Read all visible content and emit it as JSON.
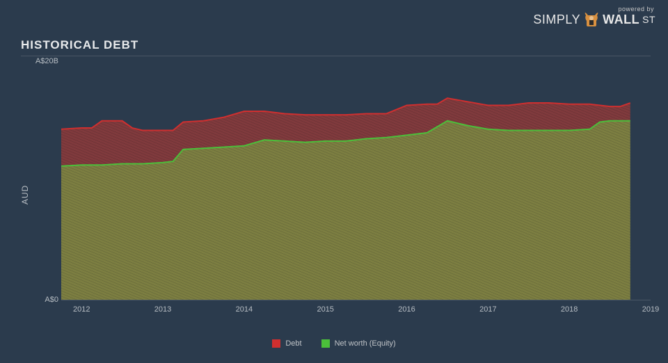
{
  "logo": {
    "powered": "powered by",
    "simply": "SIMPLY",
    "wall": "WALL",
    "st": "ST"
  },
  "title": "HISTORICAL DEBT",
  "chart": {
    "type": "area-stacked",
    "background_color": "#2b3b4d",
    "axis_color": "#4a5766",
    "tick_label_color": "#b8bec4",
    "tick_fontsize": 11,
    "title_fontsize": 17,
    "title_color": "#e8eaec",
    "ylabel": "AUD",
    "ylabel_fontsize": 12,
    "ylim": [
      0,
      20
    ],
    "yticks": [
      {
        "v": 0,
        "label": "A$0"
      },
      {
        "v": 20,
        "label": "A$20B"
      }
    ],
    "xrange": [
      2011.75,
      2019
    ],
    "xticks": [
      2012,
      2013,
      2014,
      2015,
      2016,
      2017,
      2018,
      2019
    ],
    "series": [
      {
        "name": "Net worth (Equity)",
        "stroke": "#4bbf3a",
        "stroke_width": 2,
        "fill": "#8a8a3f",
        "hatch": "#6b6b34",
        "points": [
          [
            2011.75,
            11.2
          ],
          [
            2012.0,
            11.3
          ],
          [
            2012.25,
            11.3
          ],
          [
            2012.5,
            11.4
          ],
          [
            2012.75,
            11.4
          ],
          [
            2013.0,
            11.5
          ],
          [
            2013.125,
            11.6
          ],
          [
            2013.25,
            12.6
          ],
          [
            2013.5,
            12.7
          ],
          [
            2013.75,
            12.8
          ],
          [
            2014.0,
            12.9
          ],
          [
            2014.25,
            13.4
          ],
          [
            2014.5,
            13.3
          ],
          [
            2014.75,
            13.2
          ],
          [
            2015.0,
            13.3
          ],
          [
            2015.25,
            13.3
          ],
          [
            2015.5,
            13.5
          ],
          [
            2015.75,
            13.6
          ],
          [
            2016.0,
            13.8
          ],
          [
            2016.25,
            14.0
          ],
          [
            2016.5,
            15.0
          ],
          [
            2016.75,
            14.6
          ],
          [
            2017.0,
            14.3
          ],
          [
            2017.25,
            14.2
          ],
          [
            2017.5,
            14.2
          ],
          [
            2017.75,
            14.2
          ],
          [
            2018.0,
            14.2
          ],
          [
            2018.25,
            14.3
          ],
          [
            2018.375,
            14.9
          ],
          [
            2018.5,
            15.0
          ],
          [
            2018.75,
            15.0
          ]
        ]
      },
      {
        "name": "Debt",
        "stroke": "#d02f2f",
        "stroke_width": 2,
        "fill": "#8f3a3a",
        "hatch": "#6e2e2e",
        "points": [
          [
            2011.75,
            14.3
          ],
          [
            2012.0,
            14.4
          ],
          [
            2012.125,
            14.4
          ],
          [
            2012.25,
            15.0
          ],
          [
            2012.5,
            15.0
          ],
          [
            2012.625,
            14.4
          ],
          [
            2012.75,
            14.2
          ],
          [
            2013.0,
            14.2
          ],
          [
            2013.125,
            14.2
          ],
          [
            2013.25,
            14.9
          ],
          [
            2013.5,
            15.0
          ],
          [
            2013.75,
            15.3
          ],
          [
            2014.0,
            15.8
          ],
          [
            2014.25,
            15.8
          ],
          [
            2014.5,
            15.6
          ],
          [
            2014.75,
            15.5
          ],
          [
            2015.0,
            15.5
          ],
          [
            2015.25,
            15.5
          ],
          [
            2015.5,
            15.6
          ],
          [
            2015.75,
            15.6
          ],
          [
            2016.0,
            16.3
          ],
          [
            2016.25,
            16.4
          ],
          [
            2016.375,
            16.4
          ],
          [
            2016.5,
            16.9
          ],
          [
            2016.75,
            16.6
          ],
          [
            2017.0,
            16.3
          ],
          [
            2017.25,
            16.3
          ],
          [
            2017.5,
            16.5
          ],
          [
            2017.75,
            16.5
          ],
          [
            2018.0,
            16.4
          ],
          [
            2018.25,
            16.4
          ],
          [
            2018.5,
            16.2
          ],
          [
            2018.625,
            16.2
          ],
          [
            2018.75,
            16.5
          ]
        ]
      }
    ],
    "legend": [
      {
        "label": "Debt",
        "color": "#d02f2f"
      },
      {
        "label": "Net worth (Equity)",
        "color": "#4bbf3a"
      }
    ]
  }
}
